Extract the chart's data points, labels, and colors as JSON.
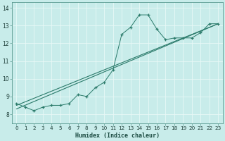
{
  "xlabel": "Humidex (Indice chaleur)",
  "background_color": "#c8ecea",
  "grid_color": "#e8f8f7",
  "line_color": "#2a7a6a",
  "xlim": [
    -0.5,
    23.5
  ],
  "ylim": [
    7.5,
    14.3
  ],
  "xticks": [
    0,
    1,
    2,
    3,
    4,
    5,
    6,
    7,
    8,
    9,
    10,
    11,
    12,
    13,
    14,
    15,
    16,
    17,
    18,
    19,
    20,
    21,
    22,
    23
  ],
  "yticks": [
    8,
    9,
    10,
    11,
    12,
    13,
    14
  ],
  "data_x": [
    0,
    1,
    2,
    3,
    4,
    5,
    6,
    7,
    8,
    9,
    10,
    11,
    12,
    13,
    14,
    15,
    16,
    17,
    18,
    19,
    20,
    21,
    22,
    23
  ],
  "data_y": [
    8.6,
    8.4,
    8.2,
    8.4,
    8.5,
    8.5,
    8.6,
    9.1,
    9.0,
    9.5,
    9.8,
    10.5,
    12.5,
    12.9,
    13.6,
    13.6,
    12.8,
    12.2,
    12.3,
    12.3,
    12.3,
    12.6,
    13.1,
    13.1
  ],
  "trend1_x": [
    0,
    23
  ],
  "trend1_y": [
    8.5,
    13.1
  ],
  "trend2_x": [
    0,
    23
  ],
  "trend2_y": [
    8.3,
    13.1
  ]
}
